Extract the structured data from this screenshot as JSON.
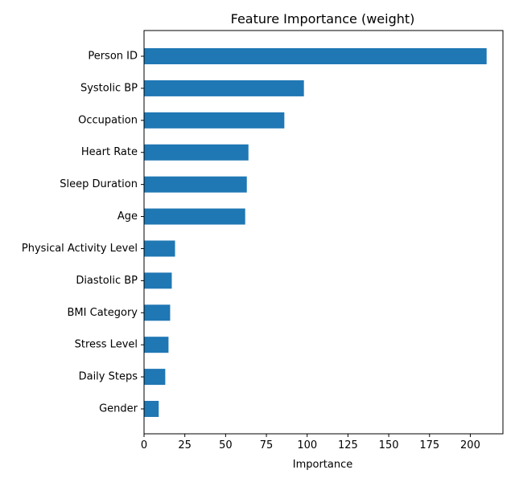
{
  "chart_data": {
    "type": "bar",
    "orientation": "horizontal",
    "title": "Feature Importance (weight)",
    "xlabel": "Importance",
    "ylabel": "",
    "categories": [
      "Person ID",
      "Systolic BP",
      "Occupation",
      "Heart Rate",
      "Sleep Duration",
      "Age",
      "Physical Activity Level",
      "Diastolic BP",
      "BMI Category",
      "Stress Level",
      "Daily Steps",
      "Gender"
    ],
    "values": [
      210,
      98,
      86,
      64,
      63,
      62,
      19,
      17,
      16,
      15,
      13,
      9
    ],
    "xlim": [
      0,
      220
    ],
    "xticks": [
      0,
      25,
      50,
      75,
      100,
      125,
      150,
      175,
      200
    ],
    "grid": false,
    "legend": "none",
    "bar_color": "#1f77b4"
  }
}
